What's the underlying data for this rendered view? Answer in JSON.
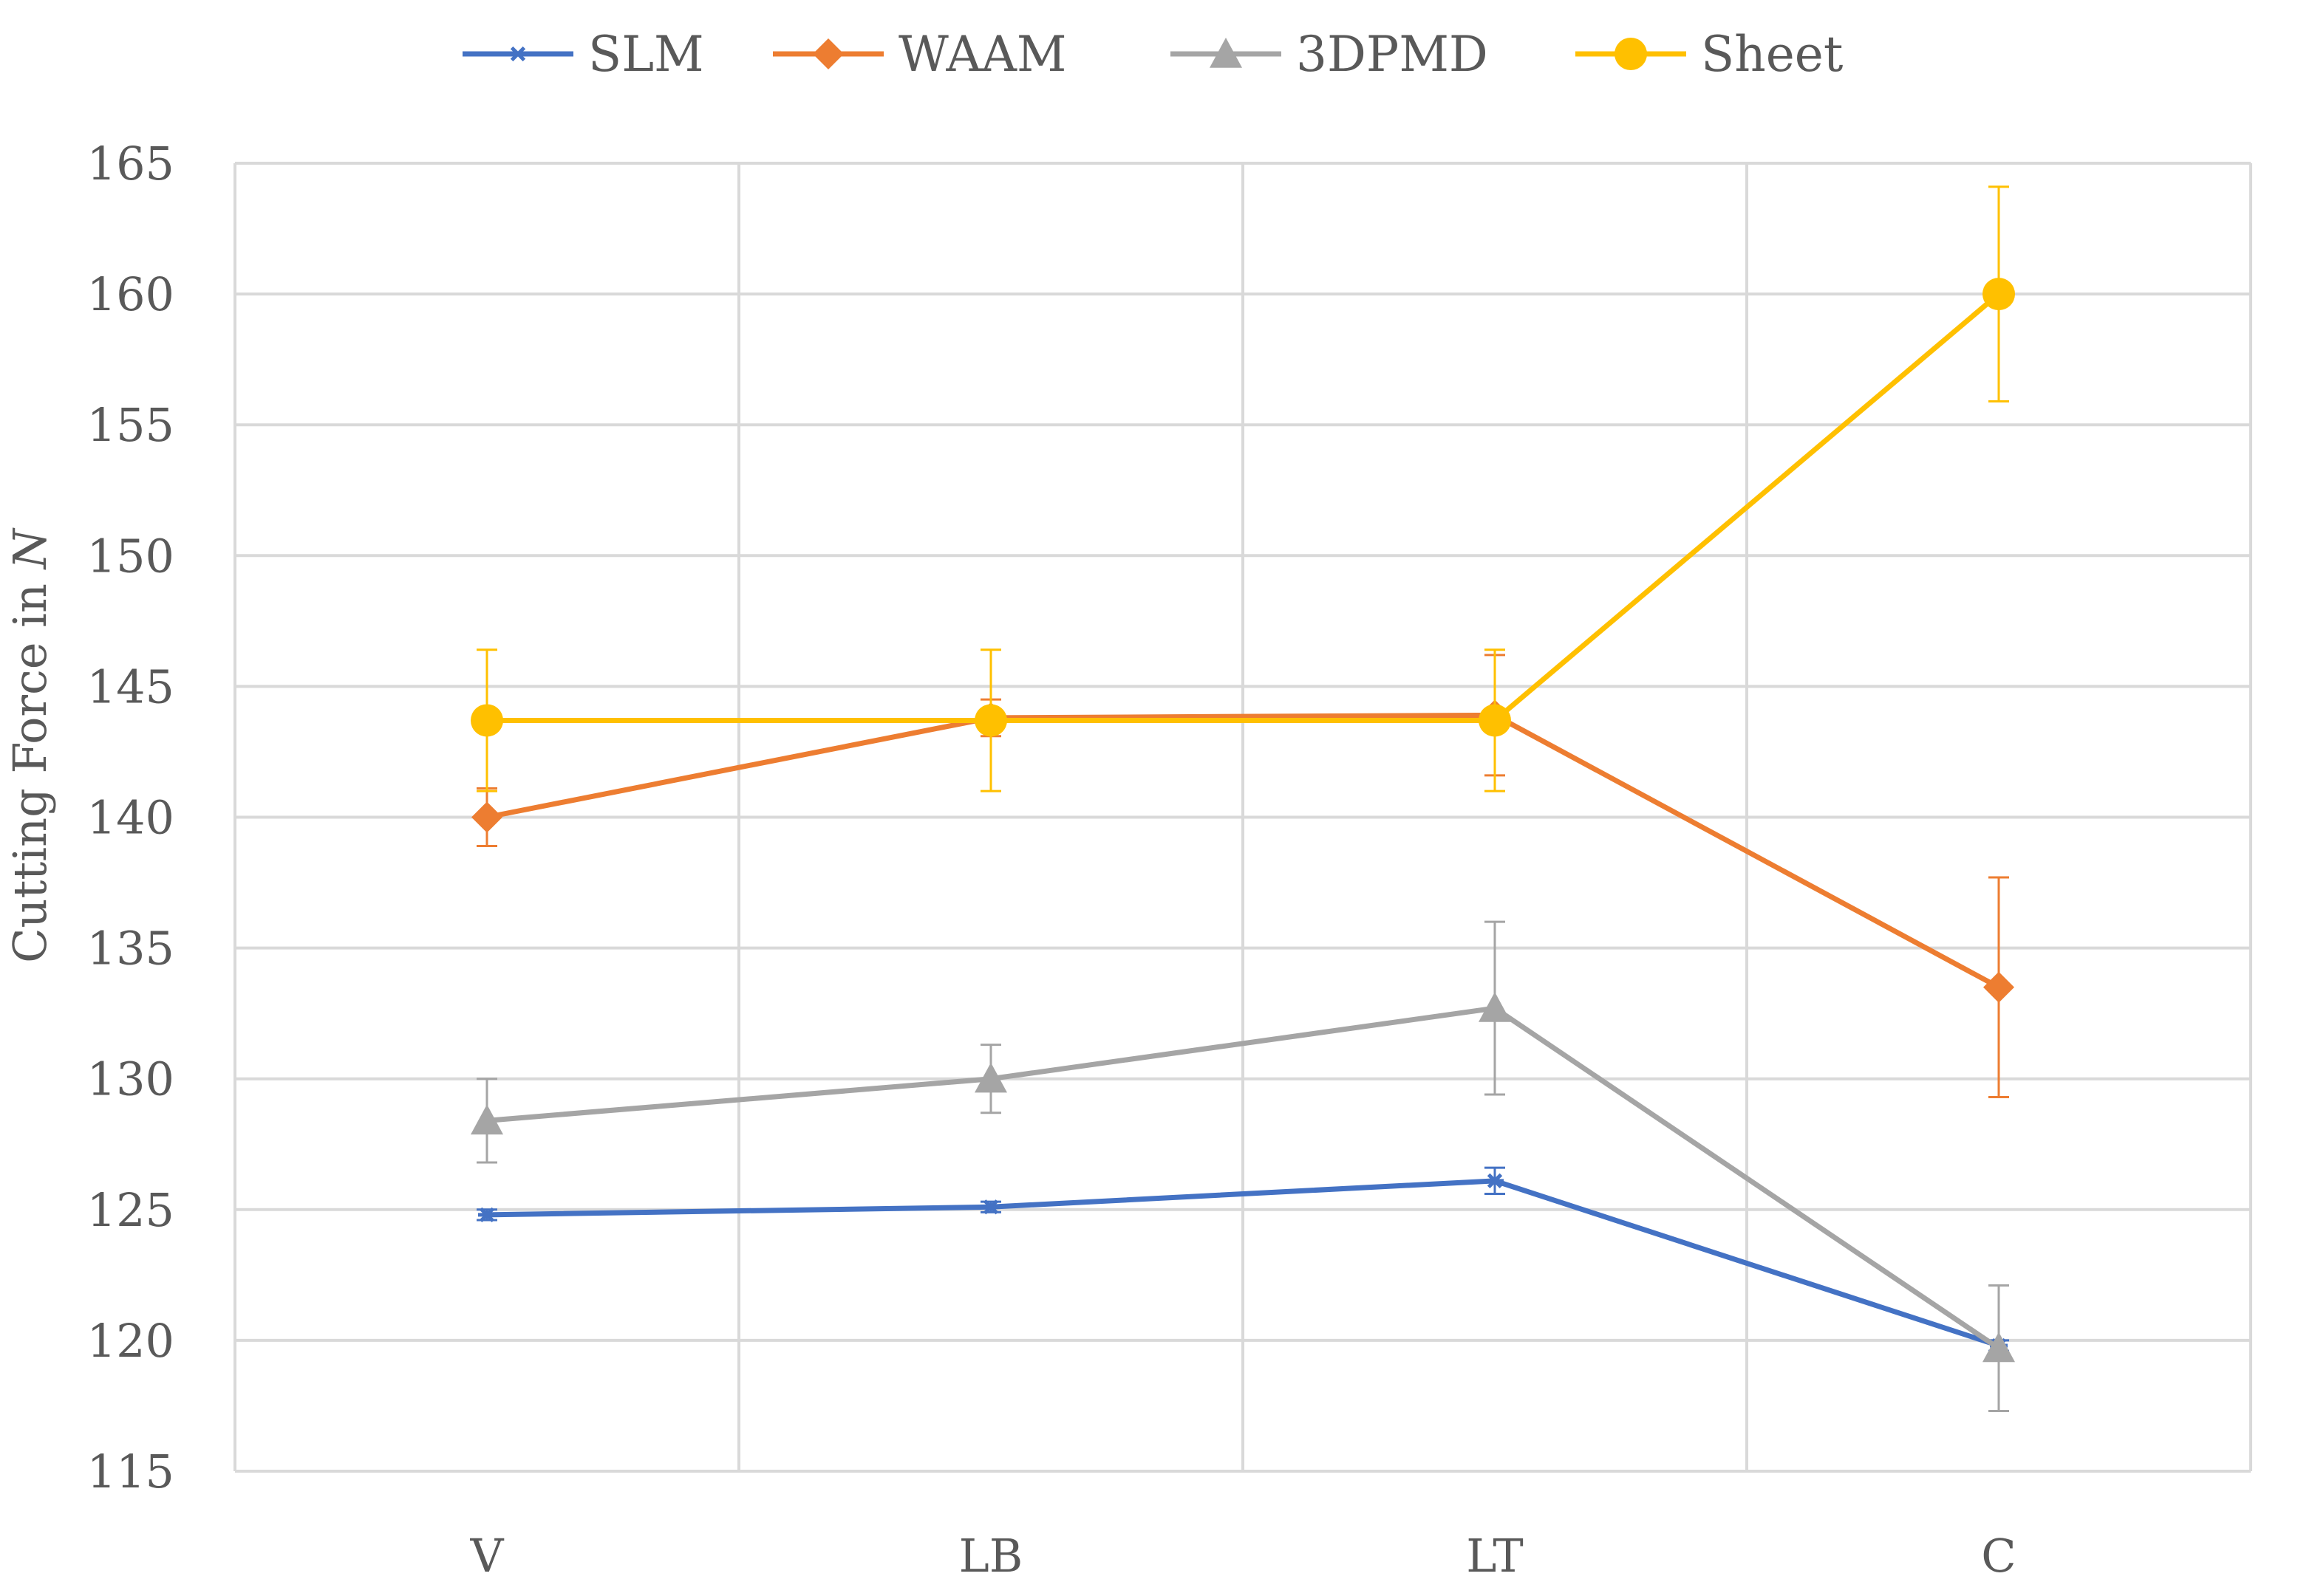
{
  "chart_data": {
    "type": "line",
    "title": "",
    "xlabel": "",
    "ylabel": "Cutting Force in ",
    "ylabel_italic": "N",
    "categories": [
      "V",
      "LB",
      "LT",
      "C"
    ],
    "ylim": [
      115,
      165
    ],
    "yticks": [
      115,
      120,
      125,
      130,
      135,
      140,
      145,
      150,
      155,
      160,
      165
    ],
    "grid": true,
    "legend_position": "top-center",
    "series": [
      {
        "name": "SLM",
        "color": "#4472C4",
        "marker": "star",
        "values": [
          124.8,
          125.1,
          126.1,
          119.8
        ],
        "errors": [
          0.2,
          0.2,
          0.5,
          0.2
        ]
      },
      {
        "name": "WAAM",
        "color": "#ED7D31",
        "marker": "diamond",
        "values": [
          140.0,
          143.8,
          143.9,
          133.5
        ],
        "errors": [
          1.1,
          0.7,
          2.3,
          4.2
        ]
      },
      {
        "name": "3DPMD",
        "color": "#A5A5A5",
        "marker": "triangle",
        "values": [
          128.4,
          130.0,
          132.7,
          119.7
        ],
        "errors": [
          1.6,
          1.3,
          3.3,
          2.4
        ]
      },
      {
        "name": "Sheet",
        "color": "#FFC000",
        "marker": "circle",
        "values": [
          143.7,
          143.7,
          143.7,
          160.0
        ],
        "errors": [
          2.7,
          2.7,
          2.7,
          4.1
        ]
      }
    ]
  }
}
